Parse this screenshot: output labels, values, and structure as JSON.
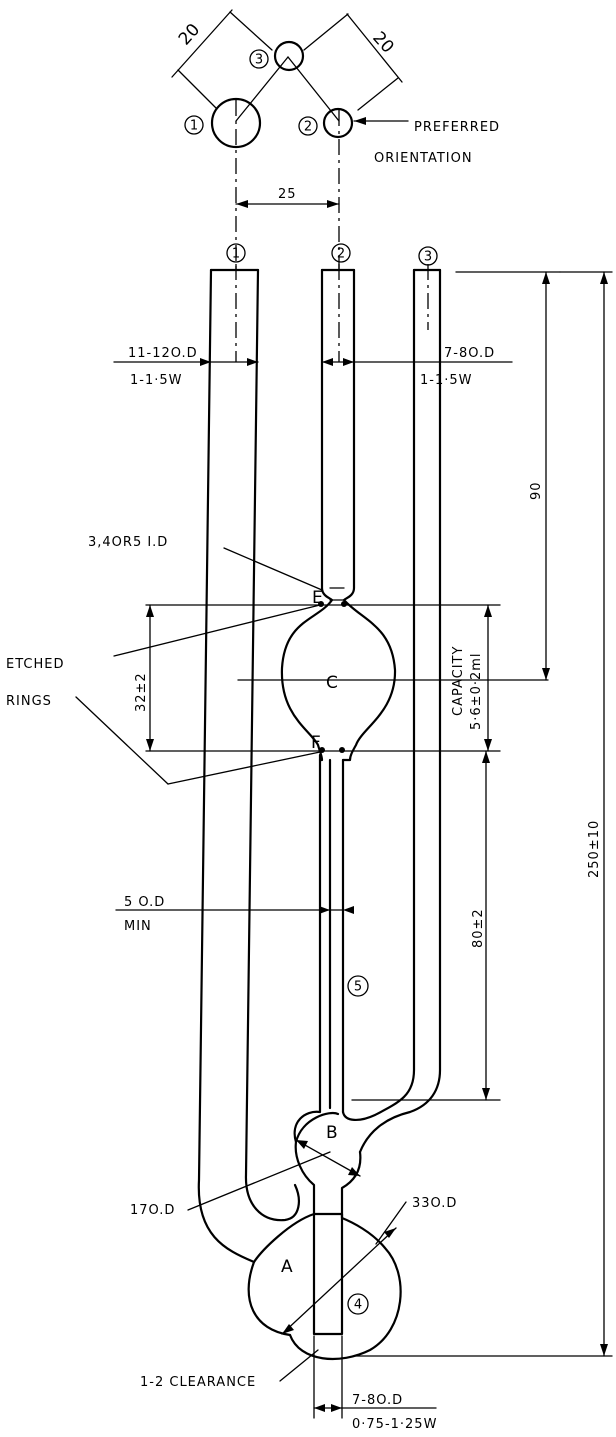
{
  "diagram": {
    "top_view": {
      "dim_1_3": "20",
      "dim_2_3": "20",
      "dim_1_2": "25",
      "tube_1": "1",
      "tube_2": "2",
      "tube_3": "3",
      "note_line1": "PREFERRED",
      "note_line2": "ORIENTATION"
    },
    "tube_labels": {
      "tube_1": "1",
      "tube_2": "2",
      "tube_3": "3",
      "tube_4": "4",
      "tube_5": "5"
    },
    "bulb_labels": {
      "A": "A",
      "B": "B",
      "C": "C",
      "E": "E",
      "F": "F"
    },
    "dimensions": {
      "tube1_od": "11-12O.D",
      "tube1_wall": "1-1·5W",
      "tube2_od": "7-8O.D",
      "tube3_wall": "1-1·5W",
      "constriction_id": "3,4OR5 I.D",
      "etched_rings_1": "ETCHED",
      "etched_rings_2": "RINGS",
      "ef_distance": "32±2",
      "capacity_1": "CAPACITY",
      "capacity_2": "5·6±0·2ml",
      "top_to_center": "90",
      "overall_height": "250±10",
      "capillary_od": "5 O.D",
      "capillary_min": "MIN",
      "capillary_length": "80±2",
      "bulb_b_od": "17O.D",
      "bulb_a_od": "33O.D",
      "clearance": "1-2 CLEARANCE",
      "tube4_od": "7-8O.D",
      "tube4_wall": "0·75-1·25W"
    }
  }
}
